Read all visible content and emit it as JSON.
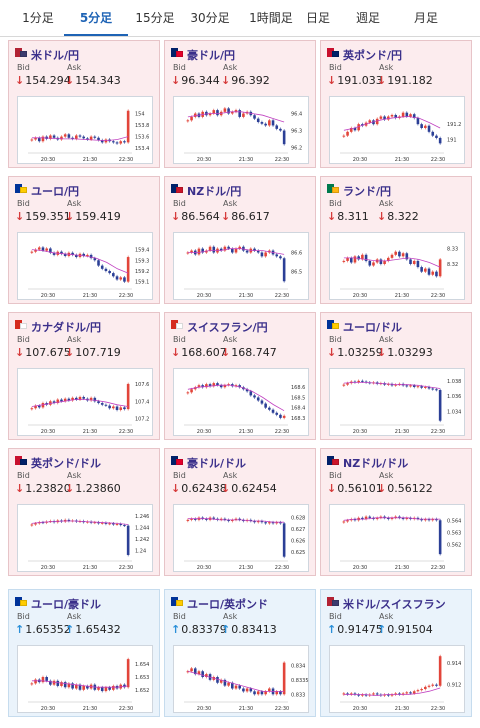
{
  "tabs": [
    {
      "label": "1分足",
      "active": false
    },
    {
      "label": "5分足",
      "active": true
    },
    {
      "label": "15分足",
      "active": false
    },
    {
      "label": "30分足",
      "active": false
    },
    {
      "label": "1時間足",
      "active": false
    },
    {
      "label": "日足",
      "active": false
    },
    {
      "label": "週足",
      "active": false
    },
    {
      "label": "月足",
      "active": false
    }
  ],
  "labels": {
    "bid": "Bid",
    "ask": "Ask"
  },
  "colors": {
    "down": "#d63b3b",
    "up": "#2a8fd8",
    "pair": "#3a2f8a",
    "ma": "#c040c0",
    "candle_up": "#e2453a",
    "candle_down": "#2b3f96"
  },
  "pairs": [
    {
      "name": "米ドル/円",
      "flag": "us-flag-icon",
      "theme": "pink",
      "dir": "down",
      "bid": "154.294",
      "ask": "154.343",
      "x_ticks": [
        "20:30",
        "21:30",
        "22:30"
      ],
      "y_ticks": [
        "154",
        "153.8",
        "153.6",
        "153.4"
      ],
      "ylim": [
        153.35,
        154.15
      ],
      "trend": [
        153.55,
        153.58,
        153.52,
        153.6,
        153.56,
        153.62,
        153.58,
        153.55,
        153.6,
        153.64,
        153.58,
        153.56,
        153.62,
        153.6,
        153.57,
        153.55,
        153.6,
        153.58,
        153.54,
        153.5,
        153.55,
        153.52,
        153.5,
        153.48,
        153.52,
        153.5,
        154.05
      ],
      "ma": [
        153.58,
        153.58,
        153.57,
        153.56,
        153.56,
        153.55,
        153.54,
        153.53,
        153.55,
        153.6
      ]
    },
    {
      "name": "豪ドル/円",
      "flag": "au-flag-icon",
      "theme": "pink",
      "dir": "down",
      "bid": "96.344",
      "ask": "96.392",
      "x_ticks": [
        "20:30",
        "21:30",
        "22:30"
      ],
      "y_ticks": [
        "96.4",
        "96.3",
        "96.2"
      ],
      "ylim": [
        96.18,
        96.45
      ],
      "trend": [
        96.36,
        96.38,
        96.4,
        96.38,
        96.41,
        96.39,
        96.4,
        96.42,
        96.39,
        96.41,
        96.43,
        96.4,
        96.41,
        96.42,
        96.38,
        96.4,
        96.41,
        96.39,
        96.37,
        96.35,
        96.34,
        96.33,
        96.36,
        96.33,
        96.31,
        96.3,
        96.22
      ],
      "ma": [
        96.38,
        96.39,
        96.4,
        96.4,
        96.41,
        96.41,
        96.4,
        96.39,
        96.37,
        96.35
      ]
    },
    {
      "name": "英ポンド/円",
      "flag": "uk-flag-icon",
      "theme": "pink",
      "dir": "down",
      "bid": "191.033",
      "ask": "191.182",
      "x_ticks": [
        "20:30",
        "21:30",
        "22:30"
      ],
      "y_ticks": [
        "191.2",
        "191"
      ],
      "ylim": [
        190.85,
        191.45
      ],
      "trend": [
        191.05,
        191.1,
        191.15,
        191.12,
        191.2,
        191.18,
        191.22,
        191.25,
        191.2,
        191.27,
        191.3,
        191.26,
        191.3,
        191.32,
        191.28,
        191.3,
        191.35,
        191.3,
        191.33,
        191.28,
        191.2,
        191.15,
        191.18,
        191.1,
        191.05,
        191.02,
        190.95
      ],
      "ma": [
        191.12,
        191.15,
        191.2,
        191.24,
        191.27,
        191.29,
        191.3,
        191.28,
        191.22,
        191.15
      ]
    },
    {
      "name": "ユーロ/円",
      "flag": "eu-flag-icon",
      "theme": "pink",
      "dir": "down",
      "bid": "159.351",
      "ask": "159.419",
      "x_ticks": [
        "20:30",
        "21:30",
        "22:30"
      ],
      "y_ticks": [
        "159.4",
        "159.3",
        "159.2",
        "159.1"
      ],
      "ylim": [
        159.05,
        159.48
      ],
      "trend": [
        159.38,
        159.4,
        159.42,
        159.39,
        159.41,
        159.37,
        159.35,
        159.38,
        159.36,
        159.34,
        159.37,
        159.35,
        159.33,
        159.36,
        159.34,
        159.35,
        159.32,
        159.3,
        159.25,
        159.22,
        159.2,
        159.18,
        159.15,
        159.12,
        159.14,
        159.1,
        159.33
      ],
      "ma": [
        159.4,
        159.39,
        159.37,
        159.36,
        159.35,
        159.34,
        159.32,
        159.28,
        159.22,
        159.18
      ]
    },
    {
      "name": "NZドル/円",
      "flag": "nz-flag-icon",
      "theme": "pink",
      "dir": "down",
      "bid": "86.564",
      "ask": "86.617",
      "x_ticks": [
        "20:30",
        "21:30",
        "22:30"
      ],
      "y_ticks": [
        "86.6",
        "86.5"
      ],
      "ylim": [
        86.42,
        86.66
      ],
      "trend": [
        86.6,
        86.61,
        86.59,
        86.62,
        86.6,
        86.61,
        86.63,
        86.6,
        86.62,
        86.61,
        86.63,
        86.62,
        86.6,
        86.62,
        86.63,
        86.61,
        86.6,
        86.62,
        86.61,
        86.6,
        86.58,
        86.6,
        86.61,
        86.59,
        86.58,
        86.57,
        86.45
      ],
      "ma": [
        86.6,
        86.6,
        86.61,
        86.61,
        86.62,
        86.62,
        86.61,
        86.61,
        86.6,
        86.59
      ]
    },
    {
      "name": "ランド/円",
      "flag": "za-flag-icon",
      "theme": "pink",
      "dir": "down",
      "bid": "8.311",
      "ask": "8.322",
      "x_ticks": [
        "20:30",
        "21:30",
        "22:30"
      ],
      "y_ticks": [
        "8.33",
        "8.32"
      ],
      "ylim": [
        8.305,
        8.335
      ],
      "trend": [
        8.322,
        8.324,
        8.321,
        8.325,
        8.323,
        8.326,
        8.322,
        8.319,
        8.321,
        8.323,
        8.32,
        8.322,
        8.324,
        8.326,
        8.328,
        8.325,
        8.327,
        8.323,
        8.32,
        8.322,
        8.318,
        8.315,
        8.317,
        8.313,
        8.315,
        8.312,
        8.323
      ],
      "ma": [
        8.324,
        8.324,
        8.323,
        8.322,
        8.322,
        8.323,
        8.324,
        8.323,
        8.321,
        8.318
      ]
    },
    {
      "name": "カナダドル/円",
      "flag": "ca-flag-icon",
      "theme": "pink",
      "dir": "down",
      "bid": "107.675",
      "ask": "107.719",
      "x_ticks": [
        "20:30",
        "21:30",
        "22:30"
      ],
      "y_ticks": [
        "107.6",
        "107.4",
        "107.2"
      ],
      "ylim": [
        107.15,
        107.68
      ],
      "trend": [
        107.32,
        107.35,
        107.33,
        107.38,
        107.36,
        107.4,
        107.38,
        107.42,
        107.4,
        107.43,
        107.41,
        107.44,
        107.42,
        107.45,
        107.43,
        107.41,
        107.44,
        107.4,
        107.38,
        107.36,
        107.35,
        107.32,
        107.34,
        107.3,
        107.33,
        107.31,
        107.6
      ],
      "ma": [
        107.34,
        107.36,
        107.38,
        107.4,
        107.42,
        107.42,
        107.41,
        107.39,
        107.36,
        107.34
      ]
    },
    {
      "name": "スイスフラン/円",
      "flag": "ch-flag-icon",
      "theme": "pink",
      "dir": "down",
      "bid": "168.607",
      "ask": "168.747",
      "x_ticks": [
        "20:30",
        "21:30",
        "22:30"
      ],
      "y_ticks": [
        "168.6",
        "168.5",
        "168.4",
        "168.3"
      ],
      "ylim": [
        168.25,
        168.7
      ],
      "trend": [
        168.55,
        168.58,
        168.6,
        168.62,
        168.6,
        168.63,
        168.61,
        168.64,
        168.62,
        168.6,
        168.62,
        168.63,
        168.61,
        168.62,
        168.6,
        168.58,
        168.56,
        168.52,
        168.5,
        168.47,
        168.44,
        168.4,
        168.38,
        168.35,
        168.33,
        168.3,
        168.32
      ],
      "ma": [
        168.58,
        168.6,
        168.61,
        168.62,
        168.62,
        168.6,
        168.56,
        168.5,
        168.43,
        168.37
      ]
    },
    {
      "name": "ユーロ/ドル",
      "flag": "eu-flag-icon",
      "theme": "pink",
      "dir": "down",
      "bid": "1.03259",
      "ask": "1.03293",
      "x_ticks": [
        "20:30",
        "21:30",
        "22:30"
      ],
      "y_ticks": [
        "1.038",
        "1.036",
        "1.034"
      ],
      "ylim": [
        1.0325,
        1.0385
      ],
      "trend": [
        1.0375,
        1.0377,
        1.0379,
        1.0378,
        1.038,
        1.0379,
        1.0378,
        1.0377,
        1.0378,
        1.0376,
        1.0377,
        1.0375,
        1.0376,
        1.0374,
        1.0375,
        1.0376,
        1.0374,
        1.0373,
        1.0374,
        1.0372,
        1.0373,
        1.0371,
        1.0372,
        1.037,
        1.0369,
        1.0368,
        1.0328
      ],
      "ma": [
        1.0377,
        1.0378,
        1.0378,
        1.0377,
        1.0376,
        1.0375,
        1.0375,
        1.0374,
        1.0372,
        1.037
      ]
    },
    {
      "name": "英ポンド/ドル",
      "flag": "uk-flag-icon",
      "theme": "pink",
      "dir": "down",
      "bid": "1.23820",
      "ask": "1.23860",
      "x_ticks": [
        "20:30",
        "21:30",
        "22:30"
      ],
      "y_ticks": [
        "1.246",
        "1.244",
        "1.242",
        "1.24"
      ],
      "ylim": [
        1.2385,
        1.2465
      ],
      "trend": [
        1.2445,
        1.2447,
        1.2449,
        1.2448,
        1.245,
        1.2451,
        1.2449,
        1.2452,
        1.245,
        1.2453,
        1.2451,
        1.2452,
        1.245,
        1.2451,
        1.2449,
        1.245,
        1.2448,
        1.2449,
        1.2447,
        1.2448,
        1.2446,
        1.2447,
        1.2445,
        1.2446,
        1.2444,
        1.2443,
        1.2392
      ],
      "ma": [
        1.2447,
        1.2449,
        1.245,
        1.2451,
        1.2451,
        1.245,
        1.2449,
        1.2448,
        1.2447,
        1.2445
      ]
    },
    {
      "name": "豪ドル/ドル",
      "flag": "au-flag-icon",
      "theme": "pink",
      "dir": "down",
      "bid": "0.62438",
      "ask": "0.62454",
      "x_ticks": [
        "20:30",
        "21:30",
        "22:30"
      ],
      "y_ticks": [
        "0.628",
        "0.627",
        "0.626",
        "0.625"
      ],
      "ylim": [
        0.6244,
        0.6284
      ],
      "trend": [
        0.6278,
        0.6279,
        0.6278,
        0.628,
        0.6279,
        0.6278,
        0.628,
        0.6279,
        0.6278,
        0.6279,
        0.6278,
        0.6277,
        0.6278,
        0.6279,
        0.6278,
        0.6277,
        0.6278,
        0.6277,
        0.6276,
        0.6277,
        0.6276,
        0.6275,
        0.6276,
        0.6275,
        0.6276,
        0.6275,
        0.6246
      ],
      "ma": [
        0.6279,
        0.6279,
        0.6279,
        0.6278,
        0.6278,
        0.6278,
        0.6277,
        0.6277,
        0.6276,
        0.6276
      ]
    },
    {
      "name": "NZドル/ドル",
      "flag": "nz-flag-icon",
      "theme": "pink",
      "dir": "down",
      "bid": "0.56101",
      "ask": "0.56122",
      "x_ticks": [
        "20:30",
        "21:30",
        "22:30"
      ],
      "y_ticks": [
        "0.564",
        "0.563",
        "0.562"
      ],
      "ylim": [
        0.5608,
        0.5646
      ],
      "trend": [
        0.5639,
        0.564,
        0.5641,
        0.564,
        0.5642,
        0.5641,
        0.5643,
        0.5642,
        0.5641,
        0.5642,
        0.5643,
        0.5642,
        0.5641,
        0.5642,
        0.5643,
        0.5642,
        0.5641,
        0.5642,
        0.5641,
        0.5642,
        0.5641,
        0.564,
        0.5641,
        0.564,
        0.5641,
        0.564,
        0.5612
      ],
      "ma": [
        0.564,
        0.5641,
        0.5641,
        0.5642,
        0.5642,
        0.5642,
        0.5642,
        0.5641,
        0.5641,
        0.5641
      ]
    },
    {
      "name": "ユーロ/豪ドル",
      "flag": "eu-flag-icon",
      "theme": "blue",
      "dir": "up",
      "bid": "1.65352",
      "ask": "1.65432",
      "x_ticks": [
        "20:30",
        "21:30",
        "22:30"
      ],
      "y_ticks": [
        "1.654",
        "1.653",
        "1.652"
      ],
      "ylim": [
        1.6512,
        1.6548
      ],
      "trend": [
        1.6525,
        1.6528,
        1.6526,
        1.653,
        1.6527,
        1.6524,
        1.6527,
        1.6523,
        1.6526,
        1.6522,
        1.6525,
        1.6521,
        1.6524,
        1.652,
        1.6523,
        1.6521,
        1.6524,
        1.652,
        1.6522,
        1.6519,
        1.6522,
        1.652,
        1.6523,
        1.6521,
        1.6524,
        1.6522,
        1.6544
      ],
      "ma": [
        1.6527,
        1.6527,
        1.6526,
        1.6525,
        1.6524,
        1.6523,
        1.6522,
        1.6522,
        1.6522,
        1.6523
      ]
    },
    {
      "name": "ユーロ/英ポンド",
      "flag": "eu-flag-icon",
      "theme": "blue",
      "dir": "up",
      "bid": "0.83379",
      "ask": "0.83413",
      "x_ticks": [
        "20:30",
        "21:30",
        "22:30"
      ],
      "y_ticks": [
        "0.834",
        "0.8335",
        "0.833"
      ],
      "ylim": [
        0.8328,
        0.8344
      ],
      "trend": [
        0.8338,
        0.8339,
        0.8337,
        0.8338,
        0.8336,
        0.8337,
        0.8335,
        0.8336,
        0.8334,
        0.8335,
        0.8333,
        0.8334,
        0.8332,
        0.8333,
        0.8332,
        0.8331,
        0.8332,
        0.8331,
        0.833,
        0.8331,
        0.833,
        0.8331,
        0.8332,
        0.833,
        0.8331,
        0.833,
        0.8341
      ],
      "ma": [
        0.8338,
        0.8337,
        0.8336,
        0.8335,
        0.8334,
        0.8333,
        0.8332,
        0.8331,
        0.8331,
        0.8331
      ]
    },
    {
      "name": "米ドル/スイスフラン",
      "flag": "us-flag-icon",
      "theme": "blue",
      "dir": "up",
      "bid": "0.91475",
      "ask": "0.91504",
      "x_ticks": [
        "20:30",
        "21:30",
        "22:30"
      ],
      "y_ticks": [
        "0.914",
        "0.912"
      ],
      "ylim": [
        0.9106,
        0.9148
      ],
      "trend": [
        0.9112,
        0.9111,
        0.9112,
        0.9111,
        0.911,
        0.9111,
        0.911,
        0.9111,
        0.9112,
        0.9111,
        0.911,
        0.9111,
        0.911,
        0.9111,
        0.9112,
        0.9111,
        0.9112,
        0.9113,
        0.9112,
        0.9114,
        0.9115,
        0.9116,
        0.9118,
        0.9119,
        0.912,
        0.9119,
        0.9146
      ],
      "ma": [
        0.9111,
        0.9111,
        0.9111,
        0.911,
        0.9111,
        0.9111,
        0.9111,
        0.9112,
        0.9114,
        0.9117
      ]
    }
  ]
}
